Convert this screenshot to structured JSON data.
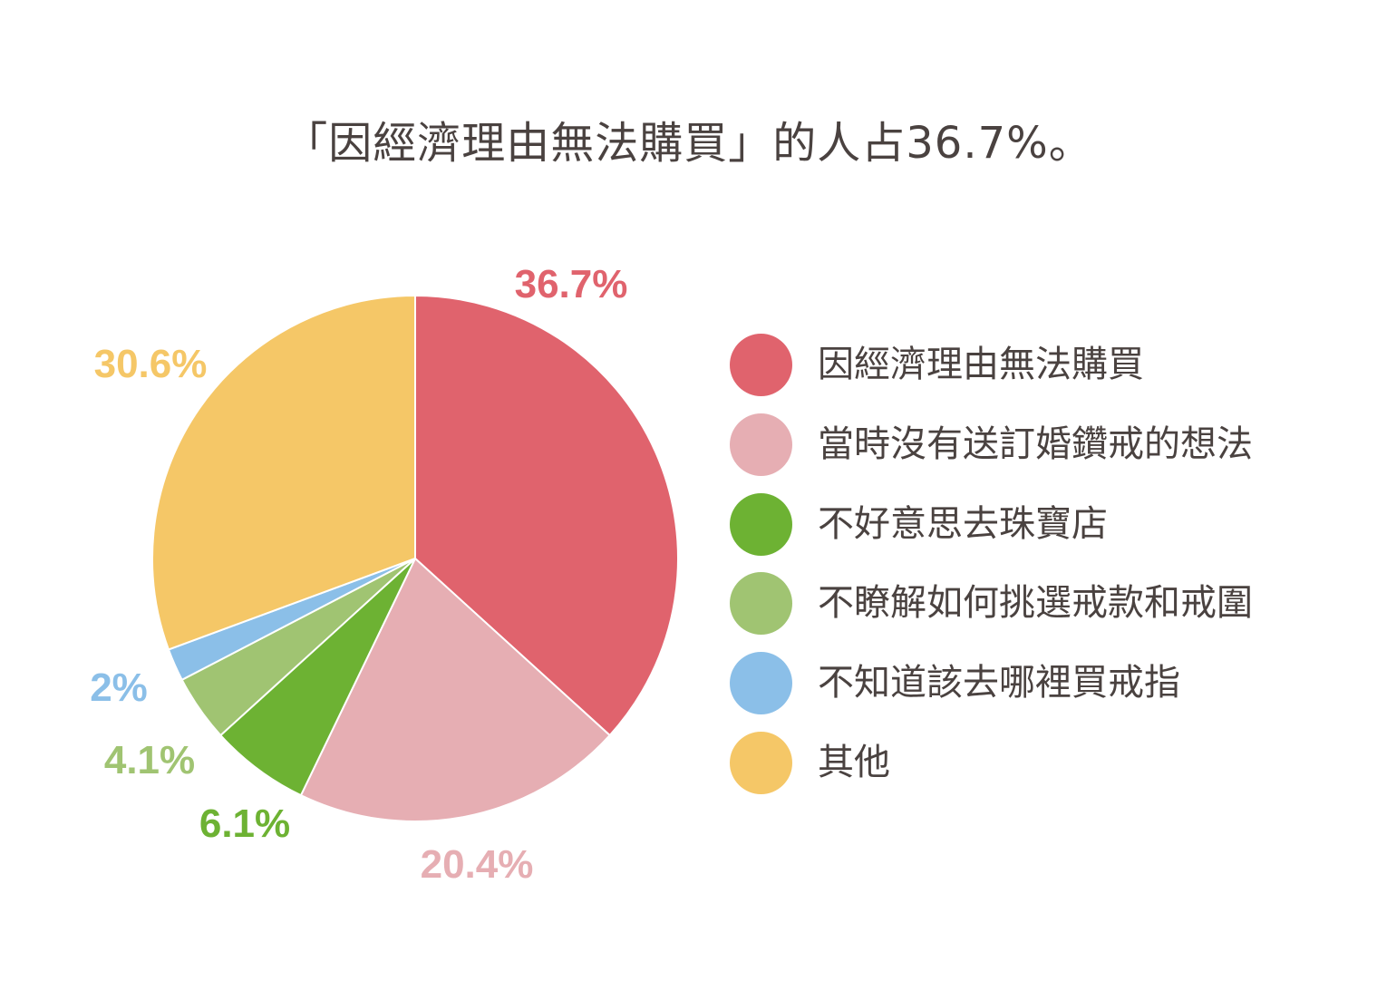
{
  "chart_data": {
    "type": "pie",
    "title": "「因經濟理由無法購買」的人占36.7%。",
    "slices": [
      {
        "label": "因經濟理由無法購買",
        "value": 36.7,
        "value_label": "36.7%",
        "color": "#e0636d"
      },
      {
        "label": "當時沒有送訂婚鑽戒的想法",
        "value": 20.4,
        "value_label": "20.4%",
        "color": "#e6aeb3"
      },
      {
        "label": "不好意思去珠寶店",
        "value": 6.1,
        "value_label": "6.1%",
        "color": "#6db233"
      },
      {
        "label": "不瞭解如何挑選戒款和戒圍",
        "value": 4.1,
        "value_label": "4.1%",
        "color": "#a0c472"
      },
      {
        "label": "不知道該去哪裡買戒指",
        "value": 2,
        "value_label": "2%",
        "color": "#8bbfe8"
      },
      {
        "label": "其他",
        "value": 30.6,
        "value_label": "30.6%",
        "color": "#f5c767"
      }
    ],
    "legend_position": "right"
  }
}
